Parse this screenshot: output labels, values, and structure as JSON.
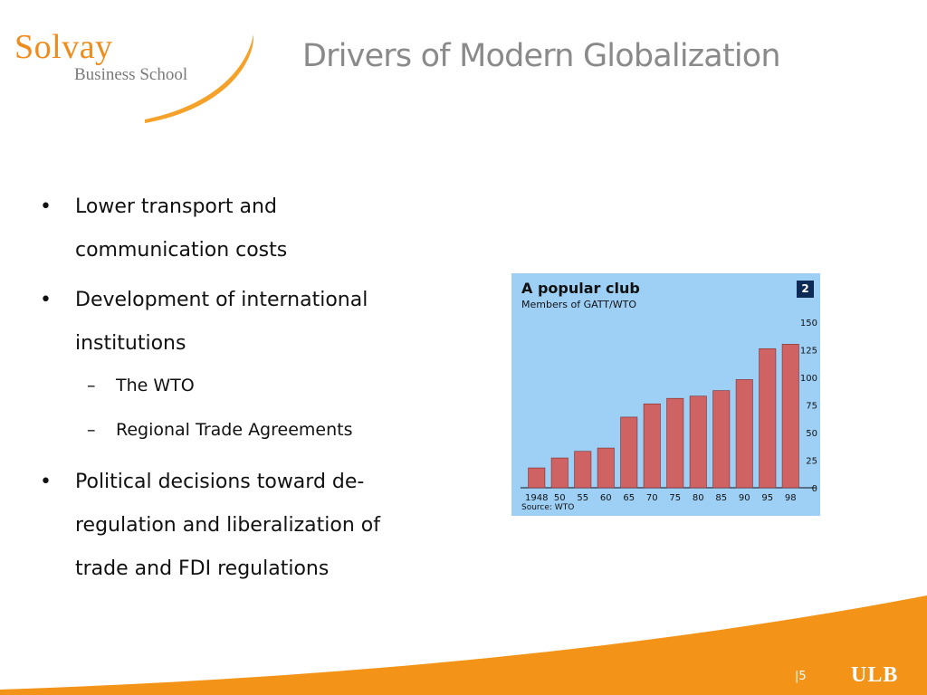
{
  "slide": {
    "title": "Drivers of Modern Globalization",
    "page_number": "5",
    "page_prefix": "|"
  },
  "logo": {
    "line1": "Solvay",
    "line2": "Business School",
    "color": "#f08c1e"
  },
  "footer": {
    "university": "ULB",
    "wave_color": "#f39317"
  },
  "bullets": [
    {
      "level": 1,
      "text_lines": [
        "Lower transport and",
        "communication costs"
      ]
    },
    {
      "level": 1,
      "text_lines": [
        "Development of international",
        "institutions"
      ]
    },
    {
      "level": 2,
      "text": "The WTO"
    },
    {
      "level": 2,
      "text": "Regional Trade Agreements"
    },
    {
      "level": 1,
      "text_lines": [
        "Political decisions toward de-",
        "regulation and liberalization of",
        "trade and FDI regulations"
      ]
    }
  ],
  "chart_data": {
    "type": "bar",
    "title": "A popular club",
    "subtitle": "Members of GATT/WTO",
    "badge": "2",
    "source": "Source: WTO",
    "categories": [
      "1948",
      "50",
      "55",
      "60",
      "65",
      "70",
      "75",
      "80",
      "85",
      "90",
      "95",
      "98"
    ],
    "values": [
      18,
      27,
      33,
      36,
      64,
      76,
      81,
      83,
      88,
      98,
      126,
      130
    ],
    "ylim": [
      0,
      150
    ],
    "yticks": [
      "150",
      "125",
      "100",
      "75",
      "50",
      "25",
      "0"
    ],
    "bar_color": "#cf6262",
    "background": "#9ed0f6"
  }
}
